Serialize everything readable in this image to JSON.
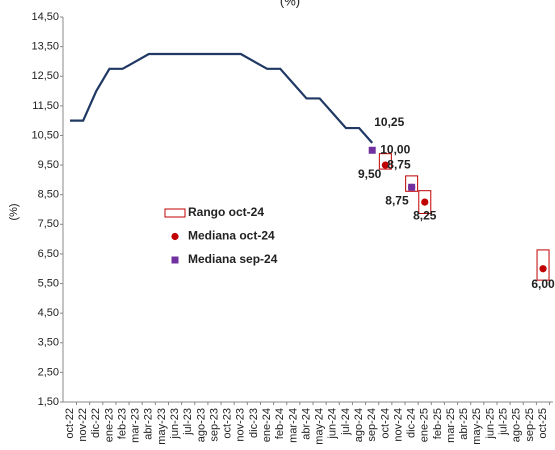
{
  "chart_data": {
    "type": "line",
    "title": "(%)",
    "y_label": "(%)",
    "categories": [
      "oct-22",
      "nov-22",
      "dic-22",
      "ene-23",
      "feb-23",
      "mar-23",
      "abr-23",
      "may-23",
      "jun-23",
      "jul-23",
      "ago-23",
      "sep-23",
      "oct-23",
      "nov-23",
      "dic-23",
      "ene-24",
      "feb-24",
      "mar-24",
      "abr-24",
      "may-24",
      "jun-24",
      "jul-24",
      "ago-24",
      "sep-24",
      "oct-24",
      "nov-24",
      "dic-24",
      "ene-25",
      "feb-25",
      "mar-25",
      "abr-25",
      "may-25",
      "jun-25",
      "jul-25",
      "ago-25",
      "sep-25",
      "oct-25"
    ],
    "ylim": [
      1.5,
      14.5
    ],
    "yticks": [
      {
        "value": 1.5,
        "label": "1,50"
      },
      {
        "value": 2.5,
        "label": "2,50"
      },
      {
        "value": 3.5,
        "label": "3,50"
      },
      {
        "value": 4.5,
        "label": "4,50"
      },
      {
        "value": 5.5,
        "label": "5,50"
      },
      {
        "value": 6.5,
        "label": "6,50"
      },
      {
        "value": 7.5,
        "label": "7,50"
      },
      {
        "value": 8.5,
        "label": "8,50"
      },
      {
        "value": 9.5,
        "label": "9,50"
      },
      {
        "value": 10.5,
        "label": "10,50"
      },
      {
        "value": 11.5,
        "label": "11,50"
      },
      {
        "value": 12.5,
        "label": "12,50"
      },
      {
        "value": 13.5,
        "label": "13,50"
      },
      {
        "value": 14.5,
        "label": "14,50"
      }
    ],
    "series": [
      {
        "kind": "line",
        "color": "#1f3864",
        "values": [
          11.0,
          11.0,
          12.0,
          12.75,
          12.75,
          13.0,
          13.25,
          13.25,
          13.25,
          13.25,
          13.25,
          13.25,
          13.25,
          13.25,
          13.0,
          12.75,
          12.75,
          12.25,
          11.75,
          11.75,
          11.25,
          10.75,
          10.75,
          10.25,
          null,
          null,
          null,
          null,
          null,
          null,
          null,
          null,
          null,
          null,
          null,
          null,
          null
        ],
        "value_labels": [
          null,
          null,
          null,
          null,
          null,
          null,
          null,
          null,
          null,
          null,
          null,
          null,
          null,
          null,
          null,
          null,
          null,
          null,
          null,
          null,
          null,
          null,
          null,
          "10,25",
          null,
          null,
          null,
          null,
          null,
          null,
          null,
          null,
          null,
          null,
          null,
          null,
          null
        ],
        "label_color": "#000000"
      },
      {
        "kind": "range",
        "name": "Rango oct-24",
        "color": "#c00000",
        "low": [
          null,
          null,
          null,
          null,
          null,
          null,
          null,
          null,
          null,
          null,
          null,
          null,
          null,
          null,
          null,
          null,
          null,
          null,
          null,
          null,
          null,
          null,
          null,
          null,
          9.5,
          null,
          8.75,
          8.0,
          null,
          null,
          null,
          null,
          null,
          null,
          null,
          null,
          5.75
        ],
        "high": [
          null,
          null,
          null,
          null,
          null,
          null,
          null,
          null,
          null,
          null,
          null,
          null,
          null,
          null,
          null,
          null,
          null,
          null,
          null,
          null,
          null,
          null,
          null,
          null,
          9.75,
          null,
          9.0,
          8.5,
          null,
          null,
          null,
          null,
          null,
          null,
          null,
          null,
          6.5
        ]
      },
      {
        "kind": "dot",
        "name": "Mediana oct-24",
        "color": "#c00000",
        "values": [
          null,
          null,
          null,
          null,
          null,
          null,
          null,
          null,
          null,
          null,
          null,
          null,
          null,
          null,
          null,
          null,
          null,
          null,
          null,
          null,
          null,
          null,
          null,
          null,
          9.5,
          null,
          8.75,
          8.25,
          null,
          null,
          null,
          null,
          null,
          null,
          null,
          null,
          6.0
        ],
        "value_labels": [
          null,
          null,
          null,
          null,
          null,
          null,
          null,
          null,
          null,
          null,
          null,
          null,
          null,
          null,
          null,
          null,
          null,
          null,
          null,
          null,
          null,
          null,
          null,
          null,
          "9,50",
          null,
          "8,75",
          "8,25",
          null,
          null,
          null,
          null,
          null,
          null,
          null,
          null,
          "6,00"
        ]
      },
      {
        "kind": "square",
        "name": "Mediana sep-24",
        "color": "#7030a0",
        "values": [
          null,
          null,
          null,
          null,
          null,
          null,
          null,
          null,
          null,
          null,
          null,
          null,
          null,
          null,
          null,
          null,
          null,
          null,
          null,
          null,
          null,
          null,
          null,
          10.0,
          null,
          null,
          8.75,
          null,
          null,
          null,
          null,
          null,
          null,
          null,
          null,
          null,
          null
        ],
        "value_labels": [
          null,
          null,
          null,
          null,
          null,
          null,
          null,
          null,
          null,
          null,
          null,
          null,
          null,
          null,
          null,
          null,
          null,
          null,
          null,
          null,
          null,
          null,
          null,
          "10,00",
          null,
          null,
          "8,75",
          null,
          null,
          null,
          null,
          null,
          null,
          null,
          null,
          null,
          null
        ]
      }
    ]
  }
}
